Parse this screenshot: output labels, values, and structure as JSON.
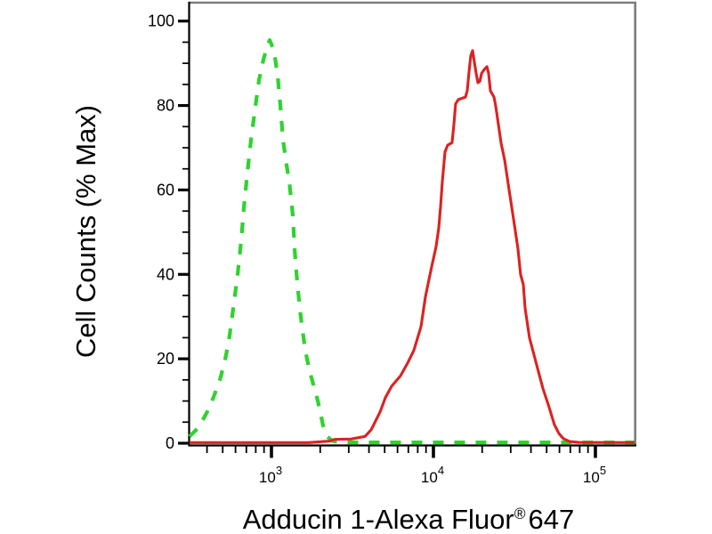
{
  "colors": {
    "background": "#ffffff",
    "border": "#7d7d7d",
    "axis": "#000000",
    "tick_label": "#000000",
    "green_dashed": "#2fd32f",
    "red_solid": "#dc2222"
  },
  "chart_data": {
    "type": "line",
    "title": "",
    "ylabel": "Cell Counts (% Max)",
    "xlabel_parts": {
      "main": "Adducin 1-Alexa Fluor",
      "registered": "®",
      "suffix": "647"
    },
    "x_scale": "log10",
    "x_range": [
      312,
      174500
    ],
    "y_range": [
      0,
      104.5
    ],
    "grid": false,
    "legend_position": "none",
    "y_major_ticks": [
      {
        "label": "0",
        "value": 0
      },
      {
        "label": "20",
        "value": 20
      },
      {
        "label": "40",
        "value": 40
      },
      {
        "label": "60",
        "value": 60
      },
      {
        "label": "80",
        "value": 80
      },
      {
        "label": "100",
        "value": 100
      }
    ],
    "y_minor_step": 5,
    "x_major_ticks": [
      {
        "base": "10",
        "exp": "3",
        "value": 1000
      },
      {
        "base": "10",
        "exp": "4",
        "value": 10000
      },
      {
        "base": "10",
        "exp": "5",
        "value": 100000
      }
    ],
    "x_minor_ticks": [
      400,
      500,
      600,
      700,
      800,
      900,
      2000,
      3000,
      4000,
      5000,
      6000,
      7000,
      8000,
      9000,
      20000,
      30000,
      40000,
      50000,
      60000,
      70000,
      80000,
      90000
    ],
    "series": [
      {
        "name": "green-dashed-control",
        "style": "dashed",
        "color": "#2fd32f",
        "points": [
          [
            312,
            1.6
          ],
          [
            340,
            3
          ],
          [
            365,
            4.5
          ],
          [
            402,
            7.5
          ],
          [
            440,
            11
          ],
          [
            480,
            15
          ],
          [
            512,
            19
          ],
          [
            545,
            24
          ],
          [
            581,
            32
          ],
          [
            618,
            40
          ],
          [
            650,
            48
          ],
          [
            676,
            56
          ],
          [
            710,
            64
          ],
          [
            748,
            72
          ],
          [
            797,
            80
          ],
          [
            838,
            86
          ],
          [
            893,
            91
          ],
          [
            940,
            94
          ],
          [
            975,
            95.5
          ],
          [
            1038,
            93
          ],
          [
            1092,
            87
          ],
          [
            1135,
            80
          ],
          [
            1178,
            72
          ],
          [
            1239,
            66
          ],
          [
            1288,
            62
          ],
          [
            1355,
            54
          ],
          [
            1390,
            46
          ],
          [
            1443,
            38
          ],
          [
            1517,
            30
          ],
          [
            1618,
            22
          ],
          [
            1722,
            17
          ],
          [
            1813,
            14
          ],
          [
            1932,
            10
          ],
          [
            2084,
            4.2
          ],
          [
            2218,
            1.5
          ],
          [
            2394,
            0.5
          ],
          [
            3000,
            0.2
          ],
          [
            174500,
            0.2
          ]
        ]
      },
      {
        "name": "red-solid-adducin1",
        "style": "solid",
        "color": "#dc2222",
        "points": [
          [
            312,
            0.15
          ],
          [
            1700,
            0.15
          ],
          [
            2300,
            0.5
          ],
          [
            2450,
            0.9
          ],
          [
            3100,
            1.0
          ],
          [
            3780,
            1.6
          ],
          [
            4130,
            3.2
          ],
          [
            4680,
            7.4
          ],
          [
            5050,
            10.8
          ],
          [
            5520,
            13.5
          ],
          [
            6270,
            16
          ],
          [
            6930,
            19
          ],
          [
            7570,
            22
          ],
          [
            8380,
            27.6
          ],
          [
            8930,
            34.8
          ],
          [
            9750,
            41.8
          ],
          [
            10380,
            46.5
          ],
          [
            10790,
            51
          ],
          [
            11070,
            56
          ],
          [
            11350,
            62
          ],
          [
            11790,
            69
          ],
          [
            12240,
            70.6
          ],
          [
            13030,
            71.2
          ],
          [
            13370,
            75.5
          ],
          [
            13710,
            80.4
          ],
          [
            14250,
            81.4
          ],
          [
            15770,
            82
          ],
          [
            16180,
            83.5
          ],
          [
            16600,
            88.2
          ],
          [
            17010,
            91.8
          ],
          [
            17450,
            93
          ],
          [
            17900,
            90.3
          ],
          [
            18360,
            87.6
          ],
          [
            18830,
            85.4
          ],
          [
            19320,
            85.7
          ],
          [
            19820,
            87.6
          ],
          [
            20560,
            88.5
          ],
          [
            21380,
            89.2
          ],
          [
            21920,
            87.6
          ],
          [
            22480,
            83.5
          ],
          [
            23660,
            82
          ],
          [
            24260,
            79.7
          ],
          [
            25190,
            75.5
          ],
          [
            26180,
            71
          ],
          [
            27540,
            67
          ],
          [
            29310,
            60
          ],
          [
            31250,
            53
          ],
          [
            33270,
            46
          ],
          [
            34520,
            40
          ],
          [
            35900,
            37.6
          ],
          [
            36830,
            32
          ],
          [
            39180,
            25
          ],
          [
            41740,
            21
          ],
          [
            44460,
            17
          ],
          [
            47400,
            13
          ],
          [
            51810,
            8.5
          ],
          [
            55840,
            4.4
          ],
          [
            59500,
            2.3
          ],
          [
            63400,
            1.1
          ],
          [
            69300,
            0.4
          ],
          [
            78700,
            0.2
          ],
          [
            174500,
            0.15
          ]
        ]
      }
    ]
  }
}
